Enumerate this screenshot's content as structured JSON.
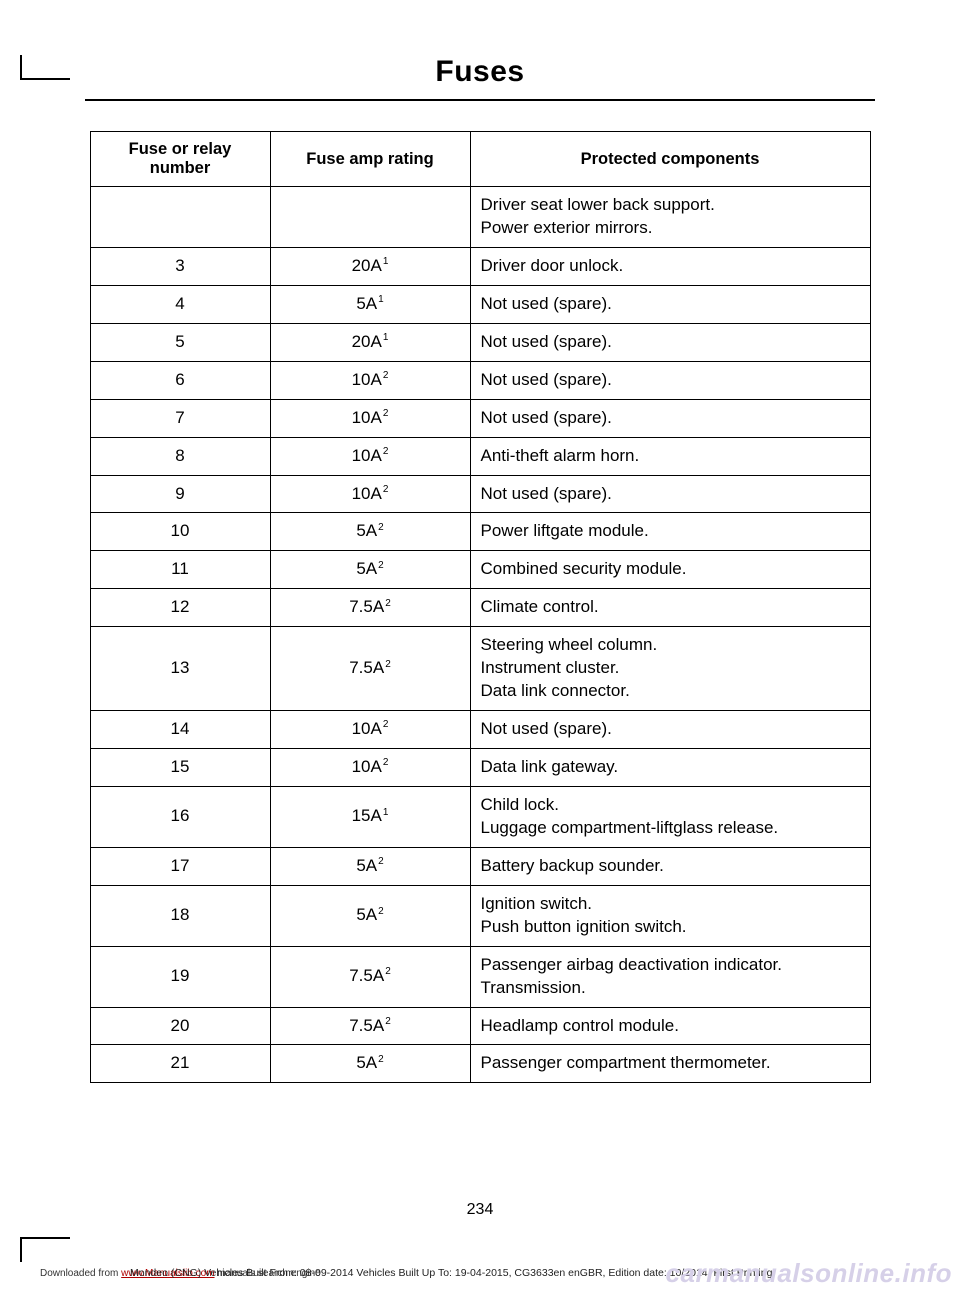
{
  "title": "Fuses",
  "tableHeaders": {
    "col1": "Fuse or relay number",
    "col2": "Fuse amp rating",
    "col3": "Protected components"
  },
  "rows": [
    {
      "num": "",
      "amp": "",
      "sup": "",
      "components": [
        "Driver seat lower back support.",
        "Power exterior mirrors."
      ]
    },
    {
      "num": "3",
      "amp": "20A",
      "sup": "1",
      "components": [
        "Driver door unlock."
      ]
    },
    {
      "num": "4",
      "amp": "5A",
      "sup": "1",
      "components": [
        "Not used (spare)."
      ]
    },
    {
      "num": "5",
      "amp": "20A",
      "sup": "1",
      "components": [
        "Not used (spare)."
      ]
    },
    {
      "num": "6",
      "amp": "10A",
      "sup": "2",
      "components": [
        "Not used (spare)."
      ]
    },
    {
      "num": "7",
      "amp": "10A",
      "sup": "2",
      "components": [
        "Not used (spare)."
      ]
    },
    {
      "num": "8",
      "amp": "10A",
      "sup": "2",
      "components": [
        "Anti-theft alarm horn."
      ]
    },
    {
      "num": "9",
      "amp": "10A",
      "sup": "2",
      "components": [
        "Not used (spare)."
      ]
    },
    {
      "num": "10",
      "amp": "5A",
      "sup": "2",
      "components": [
        "Power liftgate module."
      ]
    },
    {
      "num": "11",
      "amp": "5A",
      "sup": "2",
      "components": [
        "Combined security module."
      ]
    },
    {
      "num": "12",
      "amp": "7.5A",
      "sup": "2",
      "components": [
        "Climate control."
      ]
    },
    {
      "num": "13",
      "amp": "7.5A",
      "sup": "2",
      "components": [
        "Steering wheel column.",
        "Instrument cluster.",
        "Data link connector."
      ]
    },
    {
      "num": "14",
      "amp": "10A",
      "sup": "2",
      "components": [
        "Not used (spare)."
      ]
    },
    {
      "num": "15",
      "amp": "10A",
      "sup": "2",
      "components": [
        "Data link gateway."
      ]
    },
    {
      "num": "16",
      "amp": "15A",
      "sup": "1",
      "components": [
        "Child lock.",
        "Luggage compartment-liftglass release."
      ]
    },
    {
      "num": "17",
      "amp": "5A",
      "sup": "2",
      "components": [
        "Battery backup sounder."
      ]
    },
    {
      "num": "18",
      "amp": "5A",
      "sup": "2",
      "components": [
        "Ignition switch.",
        "Push button ignition switch."
      ]
    },
    {
      "num": "19",
      "amp": "7.5A",
      "sup": "2",
      "components": [
        "Passenger airbag deactivation indicator.",
        "Transmission."
      ]
    },
    {
      "num": "20",
      "amp": "7.5A",
      "sup": "2",
      "components": [
        "Headlamp control module."
      ]
    },
    {
      "num": "21",
      "amp": "5A",
      "sup": "2",
      "components": [
        "Passenger compartment thermometer."
      ]
    }
  ],
  "pageNumber": "234",
  "footer": {
    "download_prefix": "Downloaded from ",
    "download_link": "www.Manualslib.com",
    "download_suffix": " manuals search engine",
    "meta": "Mondeo (CNG) Vehicles Built From: 08-09-2014 Vehicles Built Up To: 19-04-2015, CG3633en enGBR, Edition date: 10/2014, First Printing"
  },
  "watermark": "carmanualsonline.info"
}
